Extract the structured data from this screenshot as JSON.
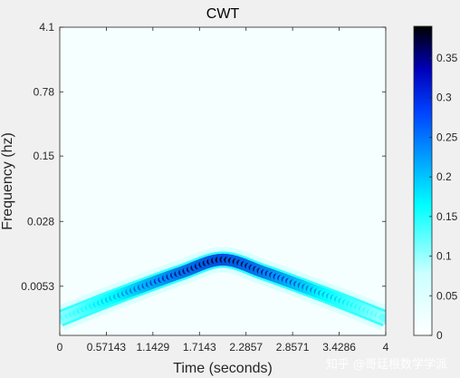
{
  "watermark": "知乎 @哥廷根数学学派",
  "chart_data": {
    "type": "heatmap",
    "title": "CWT",
    "xlabel": "Time (seconds)",
    "ylabel": "Frequency (hz)",
    "xlim": [
      0,
      4
    ],
    "x_ticks": [
      0,
      0.571428,
      1.142857,
      1.714285,
      2.285714,
      2.857142,
      3.428571,
      4
    ],
    "x_tick_labels": [
      "0",
      "0.57143",
      "1.1429",
      "1.7143",
      "2.2857",
      "2.8571",
      "3.4286",
      "4"
    ],
    "y_scale": "log",
    "ylim": [
      0.0015,
      4.1
    ],
    "y_ticks": [
      4.1,
      0.78,
      0.15,
      0.028,
      0.0053
    ],
    "y_tick_labels": [
      "4.1",
      "0.78",
      "0.15",
      "0.028",
      "0.0053"
    ],
    "ridge": {
      "x": [
        0,
        0.5,
        1.0,
        1.5,
        2.0,
        2.5,
        3.0,
        3.5,
        4.0
      ],
      "frequency_hz": [
        0.0023,
        0.0035,
        0.0052,
        0.0076,
        0.0105,
        0.0076,
        0.0052,
        0.0035,
        0.0023
      ],
      "peak_magnitude": [
        0.09,
        0.18,
        0.27,
        0.34,
        0.38,
        0.34,
        0.27,
        0.18,
        0.09
      ]
    },
    "colorbar": {
      "limits": [
        0,
        0.39
      ],
      "ticks": [
        0,
        0.05,
        0.1,
        0.15,
        0.2,
        0.25,
        0.3,
        0.35
      ],
      "tick_labels": [
        "0",
        "0.05",
        "0.1",
        "0.15",
        "0.2",
        "0.25",
        "0.3",
        "0.35"
      ],
      "colormap": [
        "#ffffff",
        "#00ffff",
        "#0000ff",
        "#000000"
      ]
    }
  }
}
